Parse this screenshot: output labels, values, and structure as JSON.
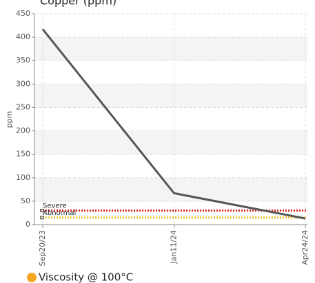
{
  "chart_data": {
    "type": "line",
    "title": "Copper (ppm)",
    "y_label": "ppm",
    "categories": [
      "Sep20/23",
      "Jan11/24",
      "Apr24/24"
    ],
    "series": [
      {
        "name": "Copper",
        "color": "#555555",
        "values": [
          417,
          67,
          13
        ]
      }
    ],
    "thresholds": [
      {
        "name": "Severe",
        "value": 30,
        "color": "#d62020"
      },
      {
        "name": "Abnormal",
        "value": 15,
        "color": "#f0c020"
      }
    ],
    "ylim": [
      0,
      450
    ],
    "yticks": [
      0,
      50,
      100,
      150,
      200,
      250,
      300,
      350,
      400,
      450
    ],
    "grid": true
  },
  "next_chart_title": "Viscosity @ 100°C",
  "next_chart_color": "#f5a623"
}
